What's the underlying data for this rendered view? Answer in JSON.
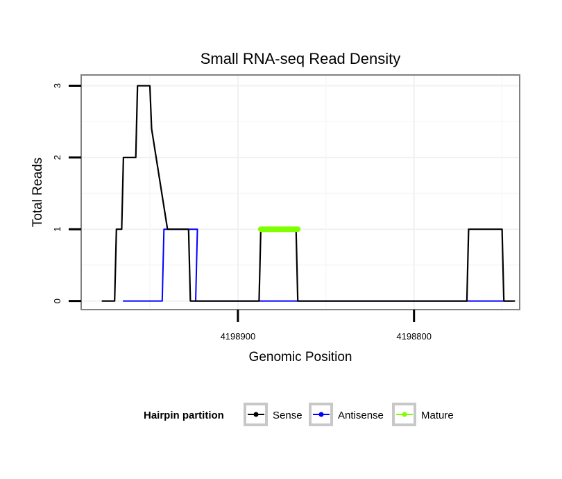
{
  "chart_data": {
    "type": "line",
    "title": "Small RNA-seq Read Density",
    "xlabel": "Genomic Position",
    "ylabel": "Total Reads",
    "x_reversed": true,
    "xlim": [
      4198989,
      4198740
    ],
    "ylim": [
      -0.12,
      3.15
    ],
    "xticks": [
      {
        "value": 4198900,
        "label": "4198900"
      },
      {
        "value": 4198800,
        "label": "4198800"
      }
    ],
    "yticks": [
      {
        "value": 0,
        "label": "0"
      },
      {
        "value": 1,
        "label": "1"
      },
      {
        "value": 2,
        "label": "2"
      },
      {
        "value": 3,
        "label": "3"
      }
    ],
    "grid": true,
    "legend": {
      "title": "Hairpin partition",
      "position": "bottom",
      "entries": [
        "Sense",
        "Antisense",
        "Mature"
      ]
    },
    "series": [
      {
        "name": "Antisense",
        "color": "#0000ff",
        "width": 2,
        "x": [
          4198965,
          4198943,
          4198942,
          4198926,
          4198925,
          4198924,
          4198923,
          4198924,
          4198894,
          4198893,
          4198893,
          4198774,
          4198773,
          4198744
        ],
        "y": [
          0,
          0,
          1,
          1,
          1,
          1,
          1,
          0,
          0,
          0,
          0,
          0,
          0,
          0
        ]
      },
      {
        "name": "Sense",
        "color": "#000000",
        "width": 2.2,
        "x": [
          4198977,
          4198970,
          4198969,
          4198966,
          4198965,
          4198958,
          4198957,
          4198950,
          4198949,
          4198940,
          4198928,
          4198927,
          4198922,
          4198922,
          4198923,
          4198888,
          4198887,
          4198867,
          4198866,
          4198770,
          4198769,
          4198750,
          4198749,
          4198743
        ],
        "y": [
          0,
          0,
          1,
          1,
          2,
          2,
          3,
          3,
          2.4,
          1,
          1,
          0,
          0,
          0,
          0,
          0,
          1,
          1,
          0,
          0,
          1,
          1,
          0,
          0
        ]
      },
      {
        "name": "Mature",
        "color": "#7fff00",
        "width": 8,
        "x": [
          4198887,
          4198866
        ],
        "y": [
          1,
          1
        ]
      }
    ]
  }
}
